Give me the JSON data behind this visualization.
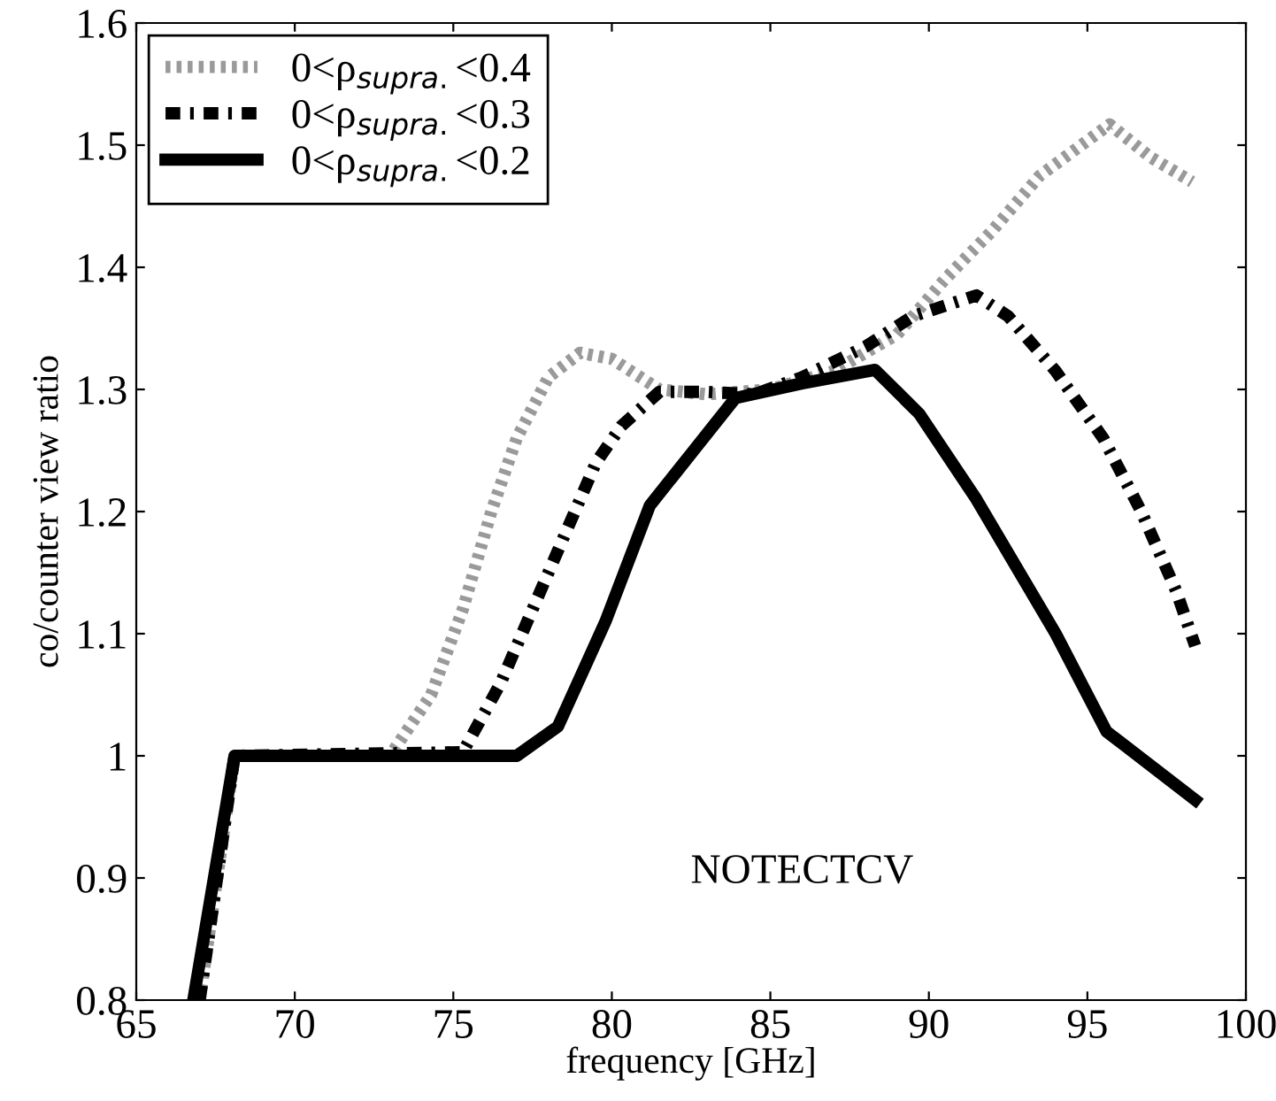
{
  "chart_data": {
    "type": "line",
    "xlabel": "frequency [GHz]",
    "ylabel": "co/counter view ratio",
    "xlim": [
      65,
      100
    ],
    "ylim": [
      0.8,
      1.6
    ],
    "xticks": [
      65,
      70,
      75,
      80,
      85,
      90,
      95,
      100
    ],
    "yticks": [
      0.8,
      0.9,
      1,
      1.1,
      1.2,
      1.3,
      1.4,
      1.5,
      1.6
    ],
    "grid": false,
    "legend": "top left",
    "annotations": [
      "NOTECTCV"
    ],
    "series": [
      {
        "name": "0<ρ$_{supra.}$<0.4",
        "color": "#9a9a9a",
        "line_style": "dotted",
        "x": [
          67,
          68.1,
          73,
          74.3,
          75.3,
          76.2,
          77,
          78,
          79,
          80,
          81.5,
          83,
          85,
          87,
          89,
          90.5,
          92,
          93.5,
          95.7,
          97,
          98.3
        ],
        "values": [
          0.8,
          1.0,
          1.0,
          1.05,
          1.12,
          1.2,
          1.26,
          1.31,
          1.33,
          1.325,
          1.3,
          1.296,
          1.3,
          1.315,
          1.345,
          1.39,
          1.43,
          1.475,
          1.517,
          1.49,
          1.47
        ]
      },
      {
        "name": "0<ρ$_{supra.}$<0.3",
        "color": "#000000",
        "line_style": "dashed",
        "x": [
          67,
          68.1,
          75.3,
          76.5,
          77.5,
          78.5,
          79.5,
          80.3,
          81.5,
          83,
          84.5,
          86,
          88,
          89.5,
          91.5,
          92.5,
          94,
          95.5,
          96.7,
          97.8,
          98.4
        ],
        "values": [
          0.8,
          1.0,
          1.003,
          1.06,
          1.12,
          1.18,
          1.24,
          1.27,
          1.298,
          1.298,
          1.296,
          1.31,
          1.335,
          1.36,
          1.377,
          1.36,
          1.315,
          1.26,
          1.2,
          1.135,
          1.09
        ]
      },
      {
        "name": "0<ρ$_{supra.}$<0.2",
        "color": "#000000",
        "line_style": "solid",
        "x": [
          66.8,
          68.1,
          77,
          78.3,
          79.8,
          81.2,
          83.9,
          86,
          88.3,
          89.7,
          91.5,
          94,
          95.6,
          98.4
        ],
        "values": [
          0.8,
          1.0,
          1.0,
          1.024,
          1.11,
          1.205,
          1.293,
          1.305,
          1.316,
          1.28,
          1.21,
          1.1,
          1.02,
          0.964
        ]
      }
    ]
  }
}
